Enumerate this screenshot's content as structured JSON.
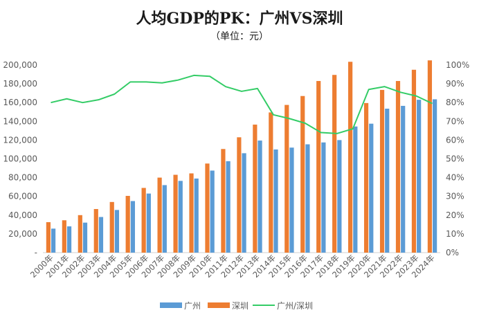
{
  "chart_data": {
    "type": "bar",
    "title": "人均GDP的PK：广州VS深圳",
    "subtitle": "（单位：元）",
    "categories": [
      "2000年",
      "2001年",
      "2002年",
      "2003年",
      "2004年",
      "2005年",
      "2006年",
      "2007年",
      "2008年",
      "2009年",
      "2010年",
      "2011年",
      "2012年",
      "2013年",
      "2014年",
      "2015年",
      "2016年",
      "2017年",
      "2018年",
      "2019年",
      "2020年",
      "2021年",
      "2022年",
      "2023年",
      "2024年"
    ],
    "series": [
      {
        "name": "广州",
        "type": "bar",
        "axis": "left",
        "color": "#5B9BD5",
        "values": [
          25600,
          28000,
          32000,
          38000,
          45500,
          55000,
          63000,
          72000,
          76500,
          79000,
          87500,
          97500,
          106000,
          119500,
          110000,
          112000,
          115500,
          117500,
          120000,
          134500,
          137500,
          153500,
          156500,
          163000,
          163500
        ]
      },
      {
        "name": "深圳",
        "type": "bar",
        "axis": "left",
        "color": "#ED7D31",
        "values": [
          32500,
          34500,
          40000,
          46500,
          54000,
          60500,
          69000,
          80000,
          83000,
          84500,
          95000,
          110500,
          123000,
          136500,
          149500,
          157500,
          167000,
          183000,
          189500,
          203500,
          159500,
          173500,
          183000,
          195000,
          205000
        ]
      },
      {
        "name": "广州/深圳",
        "type": "line",
        "axis": "right",
        "color": "#33CC66",
        "values": [
          0.8,
          0.82,
          0.8,
          0.815,
          0.845,
          0.91,
          0.91,
          0.905,
          0.92,
          0.945,
          0.94,
          0.885,
          0.86,
          0.875,
          0.735,
          0.715,
          0.69,
          0.64,
          0.635,
          0.66,
          0.87,
          0.885,
          0.855,
          0.835,
          0.795
        ]
      }
    ],
    "y_left": {
      "min": 0,
      "max": 200000,
      "ticks": [
        "-",
        "20,000",
        "40,000",
        "60,000",
        "80,000",
        "100,000",
        "120,000",
        "140,000",
        "160,000",
        "180,000",
        "200,000"
      ]
    },
    "y_right": {
      "min": 0,
      "max": 1.0,
      "ticks": [
        "0%",
        "10%",
        "20%",
        "30%",
        "40%",
        "50%",
        "60%",
        "70%",
        "80%",
        "90%",
        "100%"
      ]
    },
    "grid": false,
    "legend": "bottom"
  }
}
